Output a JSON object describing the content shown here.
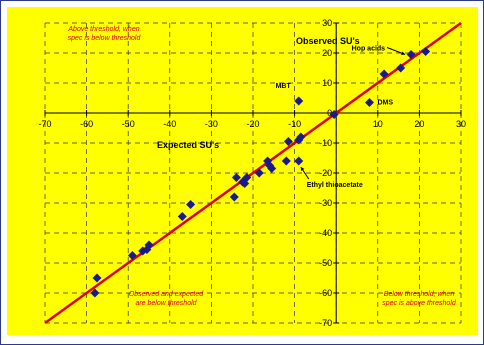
{
  "chart_data": {
    "type": "scatter",
    "title": "",
    "xlabel": "Expected SU's",
    "ylabel": "Observed SU's",
    "xlim": [
      -70,
      30
    ],
    "ylim": [
      -70,
      30
    ],
    "x_ticks": [
      -70,
      -60,
      -50,
      -40,
      -30,
      -20,
      -10,
      0,
      10,
      20,
      30
    ],
    "y_ticks": [
      -70,
      -60,
      -50,
      -40,
      -30,
      -20,
      -10,
      0,
      10,
      20,
      30
    ],
    "x_tick_labels": [
      "-70",
      "-60",
      "-50",
      "-40",
      "-30",
      "-20",
      "-10",
      "0",
      "10",
      "20",
      "30"
    ],
    "y_tick_labels": [
      "-70",
      "-60",
      "-50",
      "-40",
      "-30",
      "-20",
      "-10",
      "0",
      "10",
      "20",
      "30"
    ],
    "grid": true,
    "identity_line": {
      "from": [
        -70,
        -70
      ],
      "to": [
        30,
        30
      ],
      "color": "#e00000"
    },
    "marker_color": "#1a1a8c",
    "series": [
      {
        "points": [
          [
            -58,
            -60
          ],
          [
            -57.5,
            -55
          ],
          [
            -49,
            -47.5
          ],
          [
            -46.5,
            -46
          ],
          [
            -45.5,
            -45.5
          ],
          [
            -45,
            -44
          ],
          [
            -37,
            -34.5
          ],
          [
            -35,
            -30.5
          ],
          [
            -24.5,
            -28
          ],
          [
            -24,
            -21.5
          ],
          [
            -22.5,
            -23
          ],
          [
            -22,
            -23.5
          ],
          [
            -21.5,
            -21.5
          ],
          [
            -18.5,
            -20
          ],
          [
            -16.5,
            -16
          ],
          [
            -16,
            -17.5
          ],
          [
            -15.5,
            -18.5
          ],
          [
            -12,
            -16
          ],
          [
            -11.5,
            -9.5
          ],
          [
            -9,
            -16
          ],
          [
            -9,
            -9
          ],
          [
            -8.5,
            -8
          ],
          [
            -9,
            4
          ],
          [
            -0.5,
            -0.5
          ],
          [
            8,
            3.5
          ],
          [
            11.5,
            13
          ],
          [
            15.5,
            15
          ],
          [
            18,
            19.5
          ],
          [
            21.5,
            20.5
          ]
        ]
      }
    ],
    "annotations": [
      {
        "label": "MBT",
        "at": [
          -9,
          4
        ]
      },
      {
        "label": "DMS",
        "at": [
          8,
          3.5
        ]
      },
      {
        "label": "Hop acids",
        "at": [
          18,
          19.5
        ]
      },
      {
        "label": "Ethyl thioacetate",
        "at": [
          -9,
          -16
        ]
      }
    ],
    "notes": {
      "top_left": [
        "Above threshold, when",
        "spec is below threshold"
      ],
      "bottom_mid": [
        "Observed and expected",
        "are below threshold"
      ],
      "bottom_right": [
        "Below threshold, when",
        "spec is above threshold"
      ]
    }
  }
}
